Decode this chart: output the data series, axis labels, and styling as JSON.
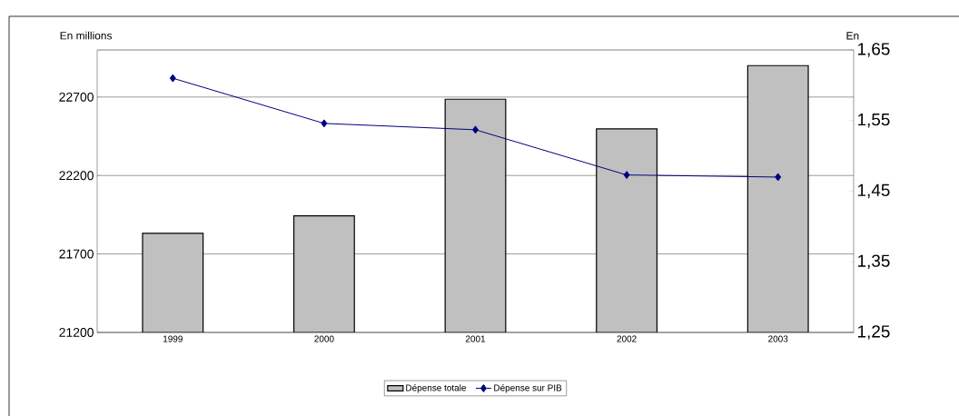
{
  "chart_data": {
    "type": "bar",
    "ylabel": "En millions",
    "y2label": "En",
    "categories": [
      "1999",
      "2000",
      "2001",
      "2002",
      "2003"
    ],
    "series": [
      {
        "name": "Dépense totale",
        "color": "#c0c0c0",
        "values": [
          21832,
          21943,
          22686,
          22497,
          22900
        ]
      },
      {
        "name": "Dépense sur PIB",
        "type": "line",
        "axis": "y2",
        "color": "#000080",
        "marker": "diamond",
        "line_style": "solid",
        "values": [
          1.61,
          1.546,
          1.537,
          1.473,
          1.47
        ]
      }
    ],
    "ylim": [
      21200,
      23000
    ],
    "yticks": [
      21200,
      21700,
      22200,
      22700
    ],
    "y2lim": [
      1.25,
      1.65
    ],
    "y2ticks": [
      {
        "value": 1.25,
        "label": "1,25"
      },
      {
        "value": 1.35,
        "label": "1,35"
      },
      {
        "value": 1.45,
        "label": "1,45"
      },
      {
        "value": 1.55,
        "label": "1,55"
      },
      {
        "value": 1.65,
        "label": "1,65"
      }
    ],
    "grid": "y",
    "legend": "bottom"
  }
}
